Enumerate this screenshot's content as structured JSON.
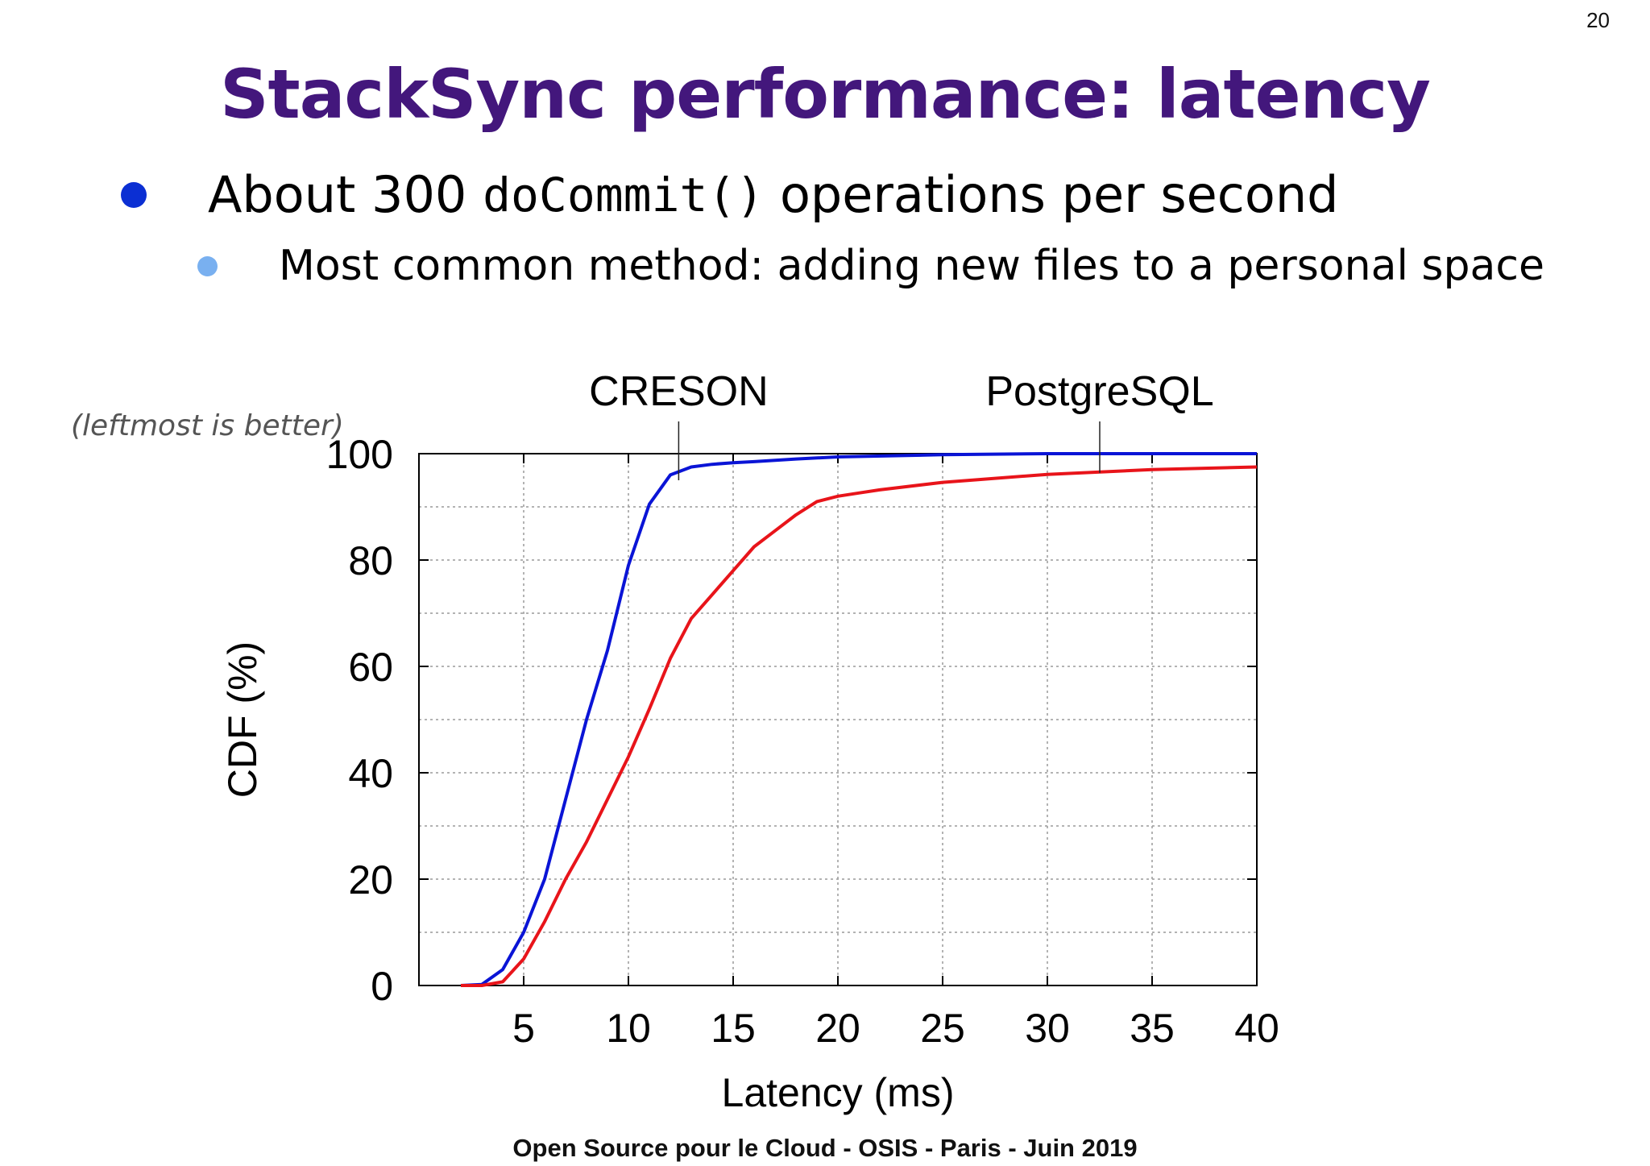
{
  "slide": {
    "page_number": "20",
    "title": "StackSync performance: latency",
    "bullet_1": {
      "prefix": "About 300 ",
      "code": "doCommit()",
      "suffix": " operations per second"
    },
    "bullet_2": "Most common method: adding new files to a personal space",
    "note": "(leftmost is better)",
    "footer": "Open Source pour le Cloud - OSIS - Paris - Juin 2019"
  },
  "colors": {
    "title": "#43177c",
    "creson": "#0a14d6",
    "postgresql": "#e8141a"
  },
  "chart_data": {
    "type": "line",
    "xlabel": "Latency (ms)",
    "ylabel": "CDF (%)",
    "xlim": [
      0,
      40
    ],
    "ylim": [
      0,
      100
    ],
    "xticks": [
      5,
      10,
      15,
      20,
      25,
      30,
      35,
      40
    ],
    "yticks": [
      0,
      20,
      40,
      60,
      80,
      100
    ],
    "grid": true,
    "series": [
      {
        "name": "CRESON",
        "color": "#0a14d6",
        "x": [
          2,
          3,
          4,
          5,
          6,
          7,
          8,
          9,
          10,
          11,
          12,
          13,
          14,
          15,
          16,
          18,
          20,
          25,
          30,
          35,
          40
        ],
        "y": [
          0,
          0.2,
          3,
          10,
          20,
          35,
          50,
          63,
          79,
          90.5,
          96,
          97.5,
          98,
          98.3,
          98.5,
          99,
          99.4,
          99.8,
          100,
          100,
          100
        ]
      },
      {
        "name": "PostgreSQL",
        "color": "#e8141a",
        "x": [
          2,
          3,
          4,
          5,
          6,
          7,
          8,
          9,
          10,
          11,
          12,
          13,
          14,
          15,
          16,
          17,
          18,
          19,
          20,
          21,
          22,
          25,
          30,
          35,
          40
        ],
        "y": [
          0,
          0,
          0.7,
          5,
          12,
          20,
          27,
          35,
          43,
          52,
          61.5,
          69,
          73.5,
          78,
          82.5,
          85.5,
          88.5,
          91,
          92,
          92.6,
          93.2,
          94.6,
          96.1,
          97,
          97.5
        ]
      }
    ],
    "annotations": [
      {
        "text": "CRESON",
        "series": "CRESON",
        "x": 12.4,
        "y": 95
      },
      {
        "text": "PostgreSQL",
        "series": "PostgreSQL",
        "x": 32.5,
        "y": 96.4
      }
    ]
  }
}
